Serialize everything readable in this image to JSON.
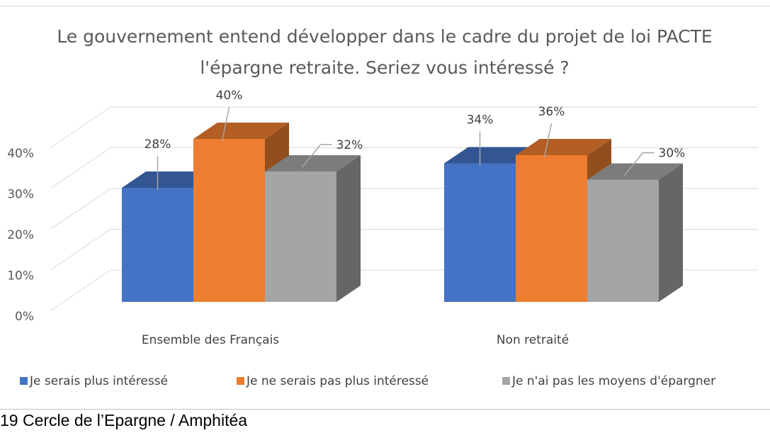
{
  "source": "19 Cercle de l’Epargne / Amphitéa",
  "chart_data": {
    "type": "bar",
    "title_lines": [
      "Le gouvernement entend développer dans le cadre du projet de loi PACTE",
      "l'épargne retraite. Seriez vous intéressé ?"
    ],
    "categories": [
      "Ensemble des Français",
      "Non retraité"
    ],
    "series": [
      {
        "name": "Je serais plus intéressé",
        "values": [
          28,
          34
        ],
        "labels": [
          "28%",
          "34%"
        ],
        "color": "#4472c4"
      },
      {
        "name": "Je ne serais pas plus intéressé",
        "values": [
          40,
          36
        ],
        "labels": [
          "40%",
          "36%"
        ],
        "color": "#ed7d31"
      },
      {
        "name": "Je n'ai pas les moyens d'épargner",
        "values": [
          32,
          30
        ],
        "labels": [
          "32%",
          "30%"
        ],
        "color": "#a5a5a5"
      }
    ],
    "ytick_labels": [
      "0%",
      "10%",
      "20%",
      "30%",
      "40%"
    ],
    "ylim": [
      0,
      40
    ],
    "grid": true,
    "legend_position": "bottom",
    "style": "3d-clustered-column"
  }
}
